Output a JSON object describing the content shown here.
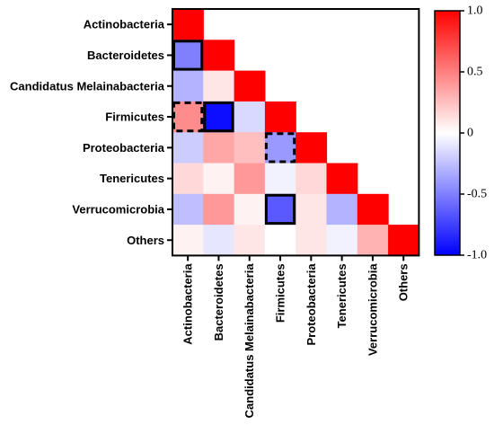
{
  "chart_data": {
    "type": "heatmap",
    "title": "",
    "xlabel": "",
    "ylabel": "",
    "rows": [
      "Actinobacteria",
      "Bacteroidetes",
      "Candidatus Melainabacteria",
      "Firmicutes",
      "Proteobacteria",
      "Tenericutes",
      "Verrucomicrobia",
      "Others"
    ],
    "columns": [
      "Actinobacteria",
      "Bacteroidetes",
      "Candidatus Melainabacteria",
      "Firmicutes",
      "Proteobacteria",
      "Tenericutes",
      "Verrucomicrobia",
      "Others"
    ],
    "values": [
      [
        1.0
      ],
      [
        -0.5,
        1.0
      ],
      [
        -0.3,
        0.1,
        1.0
      ],
      [
        0.45,
        -0.95,
        -0.15,
        1.0
      ],
      [
        -0.2,
        0.35,
        0.25,
        -0.4,
        1.0
      ],
      [
        0.15,
        0.05,
        0.4,
        -0.05,
        0.15,
        1.0
      ],
      [
        -0.25,
        0.4,
        0.05,
        -0.65,
        0.1,
        -0.3,
        1.0
      ],
      [
        0.05,
        -0.1,
        0.1,
        0.0,
        0.1,
        -0.05,
        0.3,
        1.0
      ]
    ],
    "highlights": [
      {
        "row": 1,
        "col": 0,
        "style": "solid"
      },
      {
        "row": 3,
        "col": 1,
        "style": "solid"
      },
      {
        "row": 3,
        "col": 0,
        "style": "dashed"
      },
      {
        "row": 4,
        "col": 3,
        "style": "dashed"
      },
      {
        "row": 6,
        "col": 3,
        "style": "solid"
      }
    ],
    "colorbar": {
      "range": [
        -1.0,
        1.0
      ],
      "ticks": [
        {
          "value": 1.0,
          "label": "1.0"
        },
        {
          "value": 0.5,
          "label": "0.5"
        },
        {
          "value": 0,
          "label": "0"
        },
        {
          "value": -0.5,
          "label": "-0.5"
        },
        {
          "value": -1.0,
          "label": "-1.0"
        }
      ],
      "colors": {
        "low": "#0000ff",
        "mid": "#ffffff",
        "high": "#ff0000"
      }
    },
    "grid": false,
    "legend": "right"
  }
}
